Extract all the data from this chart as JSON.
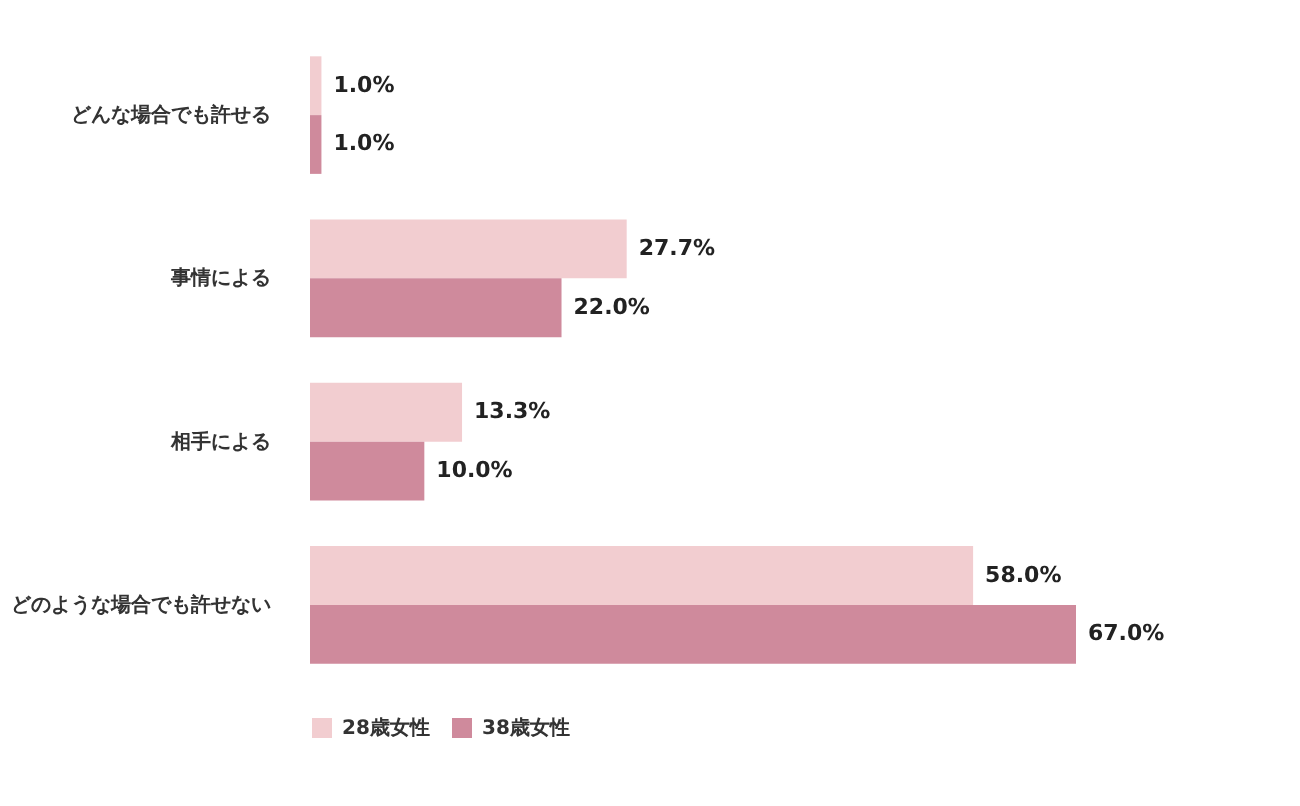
{
  "chart_data": {
    "type": "bar",
    "orientation": "horizontal",
    "categories": [
      "どんな場合でも許せる",
      "事情による",
      "相手による",
      "どのような場合でも許せない"
    ],
    "series": [
      {
        "name": "28歳女性",
        "color": "#f2cdd0",
        "values": [
          1.0,
          27.7,
          13.3,
          58.0
        ],
        "value_labels": [
          "1.0%",
          "27.7%",
          "13.3%",
          "58.0%"
        ]
      },
      {
        "name": "38歳女性",
        "color": "#cf8a9c",
        "values": [
          1.0,
          22.0,
          10.0,
          67.0
        ],
        "value_labels": [
          "1.0%",
          "22.0%",
          "10.0%",
          "67.0%"
        ]
      }
    ],
    "legend": "bottom",
    "grid": false
  }
}
